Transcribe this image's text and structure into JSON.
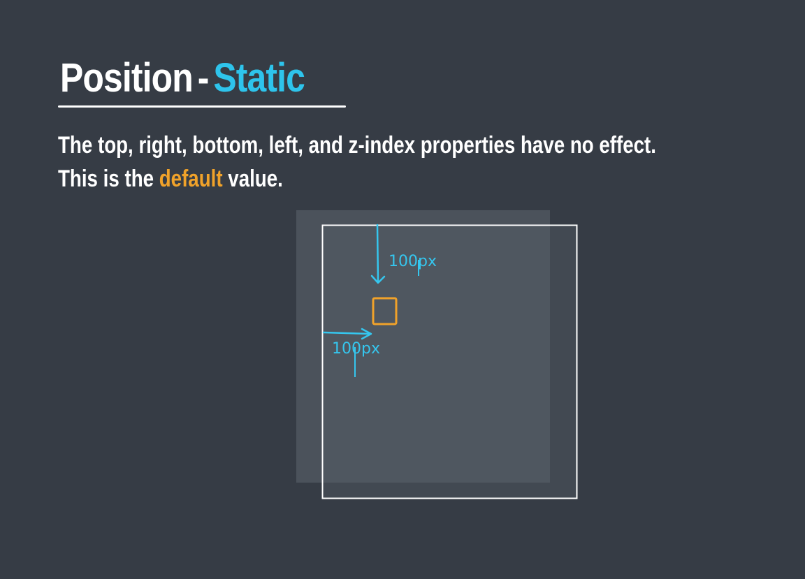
{
  "title": {
    "main": "Position",
    "dash": "-",
    "accent": "Static"
  },
  "description": {
    "line1": "The top, right, bottom, left, and z-index properties have no effect.",
    "line2_before": "This is the",
    "line2_highlight": "default",
    "line2_after": "value."
  },
  "diagram": {
    "top_offset_label": "100px",
    "left_offset_label": "100px"
  },
  "colors": {
    "background": "#363c45",
    "accent_blue": "#2ec4ec",
    "accent_orange": "#f0a22a",
    "annotation_blue": "#35c6ee"
  }
}
